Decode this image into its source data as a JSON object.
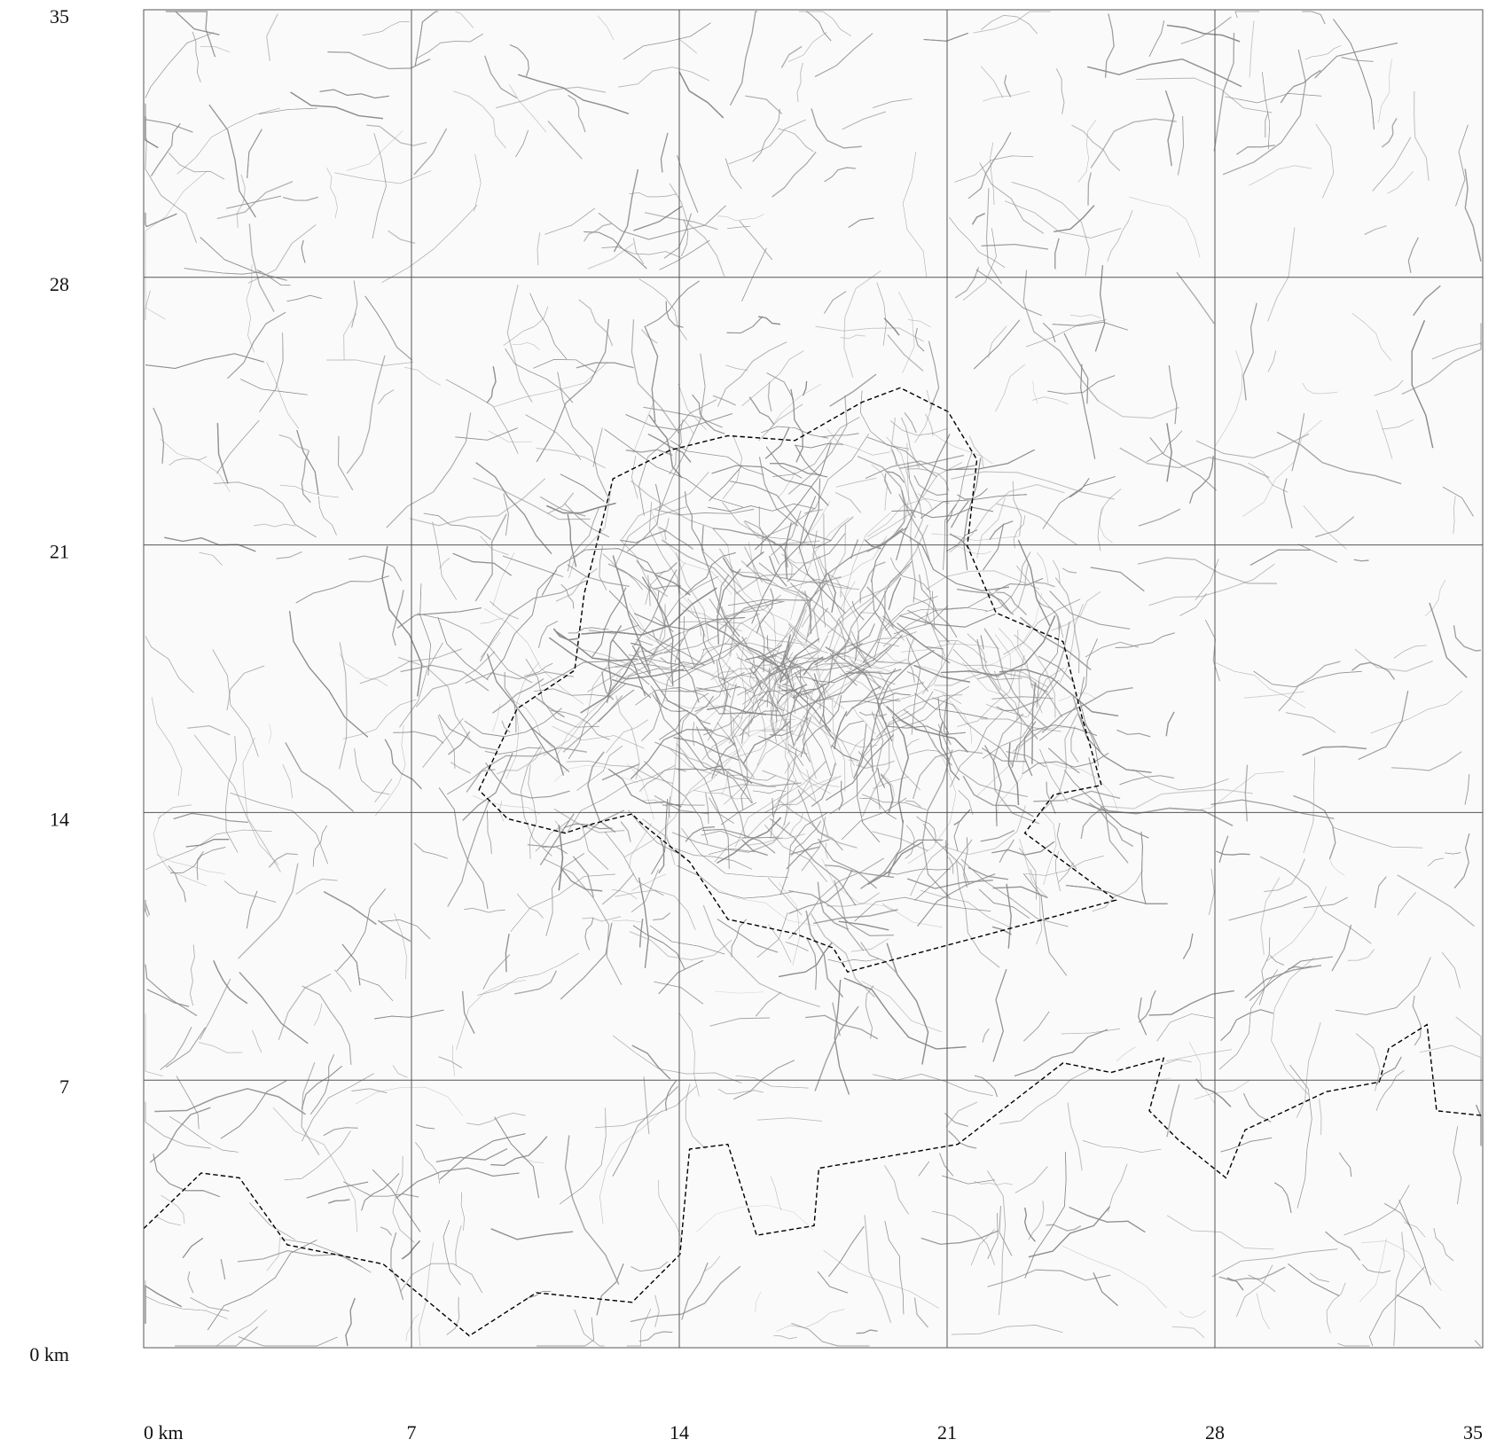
{
  "map": {
    "xlim": [
      0,
      35
    ],
    "ylim": [
      0,
      35
    ],
    "xticks": [
      {
        "value": 0,
        "label": "0 km"
      },
      7,
      14,
      21,
      28,
      35
    ],
    "yticks": [
      {
        "value": 0,
        "label": "0 km"
      },
      7,
      14,
      21,
      28,
      35
    ],
    "grid": true
  }
}
